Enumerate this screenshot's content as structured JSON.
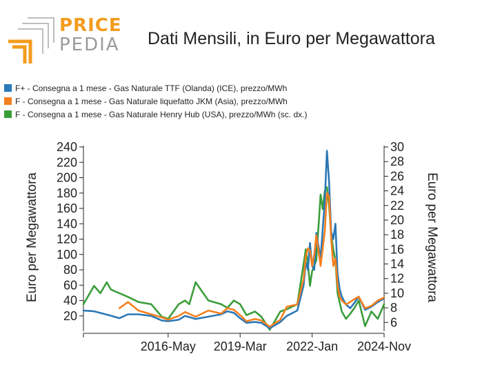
{
  "logo": {
    "word1": "PRICE",
    "word2": "PEDIA"
  },
  "colors": {
    "ttf": "#2a78b6",
    "jkm": "#f5801f",
    "henry": "#3a9d3a",
    "logo_orange": "#f39c1f",
    "logo_gray": "#9a9a9a"
  },
  "chart_data": {
    "type": "line",
    "title": "Dati Mensili, in Euro per Megawattora",
    "ylabel": "Euro per Megawattora",
    "y2label": "Euro per Megawattora",
    "ylim": [
      0,
      240
    ],
    "y2lim": [
      4.8,
      30
    ],
    "x_start": "2013-01",
    "x_end": "2024-11",
    "x_ticks": [
      {
        "date": "2016-05",
        "label": "2016-May"
      },
      {
        "date": "2019-03",
        "label": "2019-Mar"
      },
      {
        "date": "2022-01",
        "label": "2022-Jan"
      },
      {
        "date": "2024-11",
        "label": "2024-Nov"
      }
    ],
    "y_ticks": [
      20,
      40,
      60,
      80,
      100,
      120,
      140,
      160,
      180,
      200,
      220,
      240
    ],
    "y2_ticks": [
      6,
      8,
      10,
      12,
      14,
      16,
      18,
      20,
      22,
      24,
      26,
      28,
      30
    ],
    "series": [
      {
        "name": "F+ - Consegna a 1 mese - Gas Naturale TTF (Olanda) (ICE), prezzo/MWh",
        "axis": "left",
        "color": "#2a78b6",
        "points": [
          [
            "2013-01",
            27
          ],
          [
            "2013-06",
            26
          ],
          [
            "2014-01",
            21
          ],
          [
            "2014-06",
            17
          ],
          [
            "2014-10",
            22
          ],
          [
            "2015-03",
            22
          ],
          [
            "2015-09",
            20
          ],
          [
            "2016-02",
            14
          ],
          [
            "2016-05",
            13
          ],
          [
            "2016-10",
            15
          ],
          [
            "2017-01",
            20
          ],
          [
            "2017-06",
            16
          ],
          [
            "2017-12",
            19
          ],
          [
            "2018-06",
            22
          ],
          [
            "2018-09",
            26
          ],
          [
            "2018-12",
            24
          ],
          [
            "2019-03",
            17
          ],
          [
            "2019-06",
            11
          ],
          [
            "2019-10",
            12
          ],
          [
            "2020-01",
            11
          ],
          [
            "2020-05",
            4
          ],
          [
            "2020-10",
            12
          ],
          [
            "2021-01",
            20
          ],
          [
            "2021-06",
            27
          ],
          [
            "2021-09",
            60
          ],
          [
            "2021-10",
            90
          ],
          [
            "2021-11",
            80
          ],
          [
            "2021-12",
            115
          ],
          [
            "2022-01",
            85
          ],
          [
            "2022-02",
            80
          ],
          [
            "2022-03",
            128
          ],
          [
            "2022-05",
            95
          ],
          [
            "2022-07",
            170
          ],
          [
            "2022-08",
            235
          ],
          [
            "2022-09",
            195
          ],
          [
            "2022-10",
            130
          ],
          [
            "2022-11",
            120
          ],
          [
            "2022-12",
            140
          ],
          [
            "2023-01",
            75
          ],
          [
            "2023-02",
            55
          ],
          [
            "2023-03",
            45
          ],
          [
            "2023-05",
            35
          ],
          [
            "2023-07",
            30
          ],
          [
            "2023-09",
            37
          ],
          [
            "2023-11",
            45
          ],
          [
            "2024-02",
            28
          ],
          [
            "2024-05",
            32
          ],
          [
            "2024-08",
            38
          ],
          [
            "2024-11",
            43
          ]
        ]
      },
      {
        "name": "F - Consegna a 1 mese - Gas Naturale liquefatto JKM (Asia), prezzo/MWh",
        "axis": "left",
        "color": "#f5801f",
        "points": [
          [
            "2014-06",
            30
          ],
          [
            "2014-10",
            38
          ],
          [
            "2015-03",
            27
          ],
          [
            "2015-09",
            22
          ],
          [
            "2016-02",
            18
          ],
          [
            "2016-05",
            15
          ],
          [
            "2016-10",
            20
          ],
          [
            "2017-01",
            25
          ],
          [
            "2017-06",
            19
          ],
          [
            "2017-12",
            27
          ],
          [
            "2018-06",
            23
          ],
          [
            "2018-09",
            30
          ],
          [
            "2018-12",
            28
          ],
          [
            "2019-03",
            21
          ],
          [
            "2019-06",
            13
          ],
          [
            "2019-10",
            16
          ],
          [
            "2020-01",
            14
          ],
          [
            "2020-05",
            6
          ],
          [
            "2020-10",
            15
          ],
          [
            "2021-01",
            32
          ],
          [
            "2021-06",
            35
          ],
          [
            "2021-09",
            68
          ],
          [
            "2021-10",
            97
          ],
          [
            "2021-11",
            108
          ],
          [
            "2021-12",
            105
          ],
          [
            "2022-01",
            85
          ],
          [
            "2022-02",
            100
          ],
          [
            "2022-03",
            125
          ],
          [
            "2022-05",
            85
          ],
          [
            "2022-07",
            130
          ],
          [
            "2022-08",
            180
          ],
          [
            "2022-09",
            175
          ],
          [
            "2022-10",
            120
          ],
          [
            "2022-11",
            85
          ],
          [
            "2022-12",
            95
          ],
          [
            "2023-01",
            60
          ],
          [
            "2023-02",
            45
          ],
          [
            "2023-03",
            40
          ],
          [
            "2023-05",
            35
          ],
          [
            "2023-07",
            38
          ],
          [
            "2023-09",
            42
          ],
          [
            "2023-11",
            45
          ],
          [
            "2024-02",
            30
          ],
          [
            "2024-05",
            33
          ],
          [
            "2024-08",
            40
          ],
          [
            "2024-11",
            44
          ]
        ]
      },
      {
        "name": "F - Consegna a 1 mese - Gas Naturale Henry Hub (USA), prezzo/MWh (sc. dx.)",
        "axis": "right",
        "color": "#3a9d3a",
        "points": [
          [
            "2013-01",
            8.5
          ],
          [
            "2013-06",
            11
          ],
          [
            "2013-09",
            10
          ],
          [
            "2013-12",
            11.5
          ],
          [
            "2014-02",
            10.5
          ],
          [
            "2014-06",
            10
          ],
          [
            "2014-10",
            9.5
          ],
          [
            "2015-03",
            8.8
          ],
          [
            "2015-09",
            8.5
          ],
          [
            "2016-02",
            6.8
          ],
          [
            "2016-05",
            6.5
          ],
          [
            "2016-10",
            8.5
          ],
          [
            "2017-01",
            9
          ],
          [
            "2017-03",
            8.5
          ],
          [
            "2017-06",
            11.5
          ],
          [
            "2017-12",
            9
          ],
          [
            "2018-06",
            8.5
          ],
          [
            "2018-09",
            8
          ],
          [
            "2018-12",
            9
          ],
          [
            "2019-03",
            8.5
          ],
          [
            "2019-06",
            7
          ],
          [
            "2019-10",
            7.5
          ],
          [
            "2020-01",
            6.8
          ],
          [
            "2020-05",
            5
          ],
          [
            "2020-10",
            7.5
          ],
          [
            "2021-01",
            7.8
          ],
          [
            "2021-06",
            8.5
          ],
          [
            "2021-09",
            14
          ],
          [
            "2021-10",
            16
          ],
          [
            "2021-11",
            14
          ],
          [
            "2021-12",
            11
          ],
          [
            "2022-01",
            13
          ],
          [
            "2022-03",
            14.5
          ],
          [
            "2022-05",
            23.5
          ],
          [
            "2022-06",
            21.5
          ],
          [
            "2022-07",
            24
          ],
          [
            "2022-08",
            24.5
          ],
          [
            "2022-09",
            22
          ],
          [
            "2022-10",
            18
          ],
          [
            "2022-11",
            16
          ],
          [
            "2022-12",
            14.5
          ],
          [
            "2023-01",
            10
          ],
          [
            "2023-03",
            7.5
          ],
          [
            "2023-05",
            6.5
          ],
          [
            "2023-07",
            7.2
          ],
          [
            "2023-09",
            8
          ],
          [
            "2023-11",
            9
          ],
          [
            "2024-02",
            5.5
          ],
          [
            "2024-05",
            7.5
          ],
          [
            "2024-08",
            6.5
          ],
          [
            "2024-11",
            8.5
          ]
        ]
      }
    ]
  }
}
